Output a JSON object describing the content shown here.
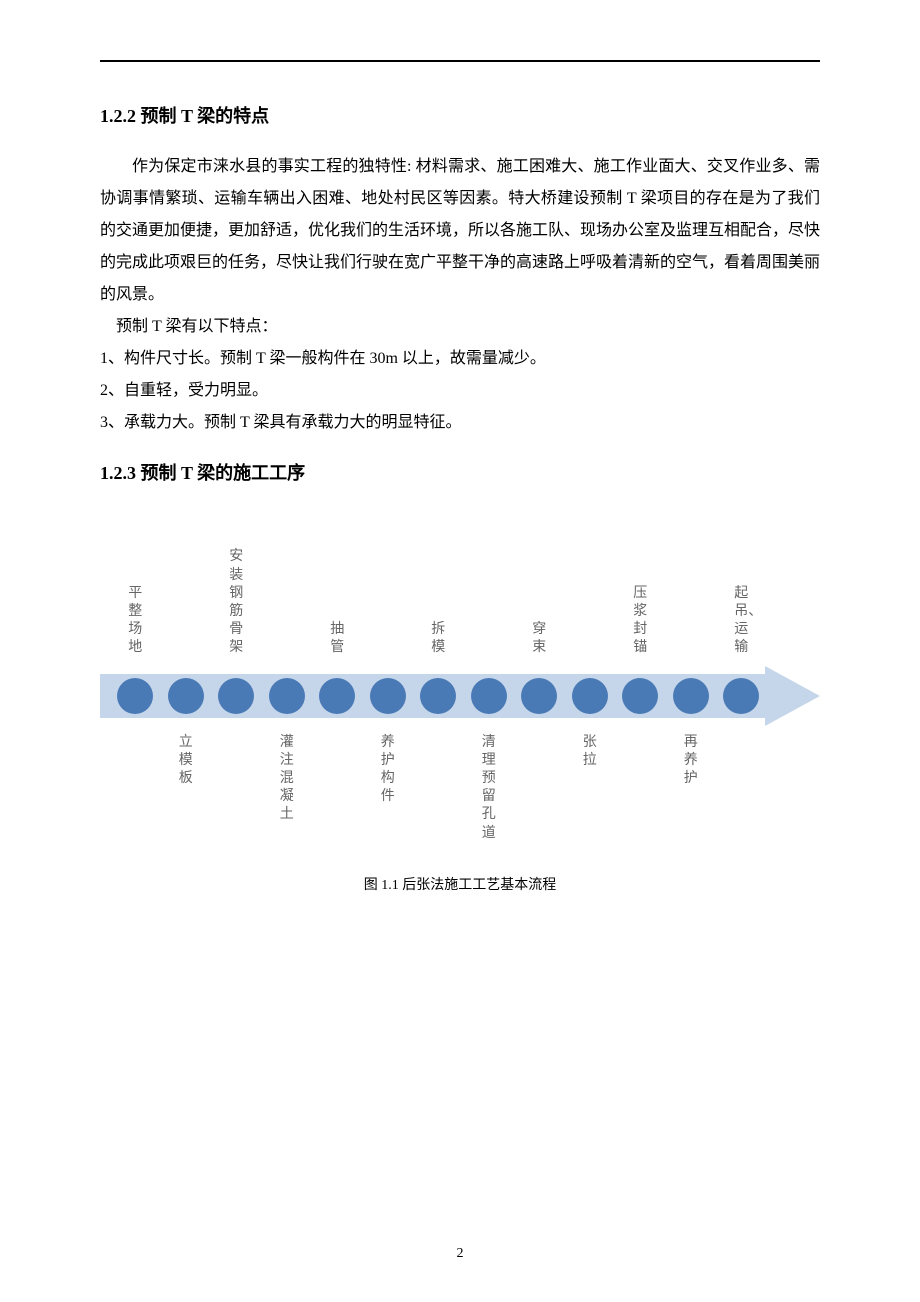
{
  "heading_1": "1.2.2 预制 T 梁的特点",
  "para_1": "作为保定市涞水县的事实工程的独特性: 材料需求、施工困难大、施工作业面大、交叉作业多、需协调事情繁琐、运输车辆出入困难、地处村民区等因素。特大桥建设预制 T 梁项目的存在是为了我们的交通更加便捷，更加舒适，优化我们的生活环境，所以各施工队、现场办公室及监理互相配合，尽快的完成此项艰巨的任务，尽快让我们行驶在宽广平整干净的高速路上呼吸着清新的空气，看着周围美丽的风景。",
  "line_intro": "预制 T 梁有以下特点：",
  "bullets": [
    "1、构件尺寸长。预制 T 梁一般构件在 30m 以上，故需量减少。",
    "2、自重轻，受力明显。",
    "3、承载力大。预制 T 梁具有承载力大的明显特征。"
  ],
  "heading_2": "1.2.3 预制 T 梁的施工工序",
  "flow": {
    "top": [
      "平整场地",
      "",
      "安装钢筋骨架",
      "",
      "抽管",
      "",
      "拆模",
      "",
      "穿束",
      "",
      "压浆封锚",
      "",
      "起吊、运输"
    ],
    "bottom": [
      "",
      "立模板",
      "",
      "灌注混凝土",
      "",
      "养护构件",
      "",
      "清理预留孔道",
      "",
      "张拉",
      "",
      "再养护",
      ""
    ],
    "dot_count": 13,
    "dot_color": "#4a7ab6",
    "arrow_color": "#c5d6ea",
    "label_color": "#666666",
    "label_fontsize": 14
  },
  "caption": "图 1.1 后张法施工工艺基本流程",
  "page_number": "2"
}
